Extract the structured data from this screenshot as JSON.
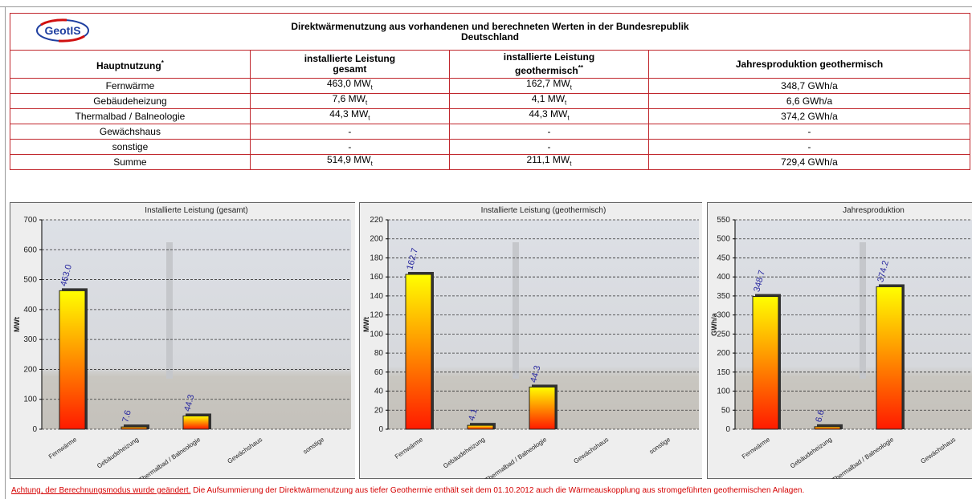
{
  "header": {
    "logo": "GeotIS",
    "title_line1": "Direktwärmenutzung aus vorhandenen und berechneten Werten in der Bundesrepublik",
    "title_line2": "Deutschland"
  },
  "table": {
    "columns": [
      {
        "line1": "Hauptnutzung",
        "note": "*"
      },
      {
        "line1": "installierte Leistung",
        "line2": "gesamt"
      },
      {
        "line1": "installierte Leistung",
        "line2": "geothermisch",
        "note": "**"
      },
      {
        "line1": "Jahresproduktion geothermisch"
      }
    ],
    "rows": [
      [
        "Fernwärme",
        {
          "text": "463,0 MW",
          "sub": "t"
        },
        {
          "text": "162,7 MW",
          "sub": "t"
        },
        "348,7 GWh/a"
      ],
      [
        "Gebäudeheizung",
        {
          "text": "7,6 MW",
          "sub": "t"
        },
        {
          "text": "4,1 MW",
          "sub": "t"
        },
        "6,6 GWh/a"
      ],
      [
        "Thermalbad / Balneologie",
        {
          "text": "44,3 MW",
          "sub": "t"
        },
        {
          "text": "44,3 MW",
          "sub": "t"
        },
        "374,2 GWh/a"
      ],
      [
        "Gewächshaus",
        "-",
        "-",
        "-"
      ],
      [
        "sonstige",
        "-",
        "-",
        "-"
      ],
      [
        "Summe",
        {
          "text": "514,9 MW",
          "sub": "t"
        },
        {
          "text": "211,1 MW",
          "sub": "t"
        },
        "729,4 GWh/a"
      ]
    ]
  },
  "chart_data": [
    {
      "type": "bar",
      "title": "Installierte Leistung (gesamt)",
      "y_label": "MWt",
      "categories": [
        "Fernwärme",
        "Gebäudeheizung",
        "Thermalbad / Balneologie",
        "Gewächshaus",
        "sonstige"
      ],
      "values": [
        463.0,
        7.6,
        44.3,
        null,
        null
      ],
      "value_labels": [
        "463.0",
        "7.6",
        "44.3",
        null,
        null
      ],
      "ylim": [
        0,
        700
      ],
      "yticks": [
        0,
        100,
        200,
        300,
        400,
        500,
        600,
        700
      ],
      "grid": true
    },
    {
      "type": "bar",
      "title": "Installierte Leistung (geothermisch)",
      "y_label": "MWt",
      "categories": [
        "Fernwärme",
        "Gebäudeheizung",
        "Thermalbad / Balneologie",
        "Gewächshaus",
        "sonstige"
      ],
      "values": [
        162.7,
        4.1,
        44.3,
        null,
        null
      ],
      "value_labels": [
        "162.7",
        "4.1",
        "44.3",
        null,
        null
      ],
      "ylim": [
        0,
        220
      ],
      "yticks": [
        0,
        20,
        40,
        60,
        80,
        100,
        120,
        140,
        160,
        180,
        200,
        220
      ],
      "grid": true
    },
    {
      "type": "bar",
      "title": "Jahresproduktion",
      "y_label": "GWh/a",
      "categories": [
        "Fernwärme",
        "Gebäudeheizung",
        "Thermalbad / Balneologie",
        "Gewächshaus"
      ],
      "values": [
        348.7,
        6.6,
        374.2,
        null
      ],
      "value_labels": [
        "348.7",
        "6.6",
        "374.2",
        null
      ],
      "ylim": [
        0,
        550
      ],
      "yticks": [
        0,
        50,
        100,
        150,
        200,
        250,
        300,
        350,
        400,
        450,
        500,
        550
      ],
      "grid": true
    }
  ],
  "note": {
    "link": "Achtung, der Berechnungsmodus wurde geändert.",
    "text": "Die Aufsummierung der Direktwärmenutzung aus tiefer Geothermie enthält seit dem 01.10.2012 auch die Wärmeauskopplung aus stromgeführten geothermischen Anlagen."
  }
}
